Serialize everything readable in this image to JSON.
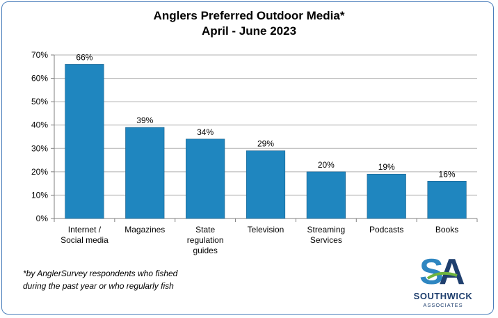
{
  "chart_data": {
    "type": "bar",
    "title_line1": "Anglers Preferred Outdoor Media*",
    "title_line2": "April - June 2023",
    "categories": [
      [
        "Internet /",
        "Social media"
      ],
      [
        "Magazines"
      ],
      [
        "State",
        "regulation",
        "guides"
      ],
      [
        "Television"
      ],
      [
        "Streaming",
        "Services"
      ],
      [
        "Podcasts"
      ],
      [
        "Books"
      ]
    ],
    "values": [
      66,
      39,
      34,
      29,
      20,
      19,
      16
    ],
    "data_labels": [
      "66%",
      "39%",
      "34%",
      "29%",
      "20%",
      "19%",
      "16%"
    ],
    "ylim": [
      0,
      70
    ],
    "yticks": [
      0,
      10,
      20,
      30,
      40,
      50,
      60,
      70
    ],
    "ytick_labels": [
      "0%",
      "10%",
      "20%",
      "30%",
      "40%",
      "50%",
      "60%",
      "70%"
    ],
    "grid": true,
    "bar_color": "#1f86bf",
    "legend": "none"
  },
  "footnote": {
    "line1": "*by AnglerSurvey respondents who fished",
    "line2": "during the past year or who regularly fish"
  },
  "logo": {
    "name": "SOUTHWICK",
    "sub": "ASSOCIATES",
    "colors": {
      "s": "#2e86c1",
      "a": "#1f3f6e",
      "wave": "#6fb43f"
    }
  }
}
